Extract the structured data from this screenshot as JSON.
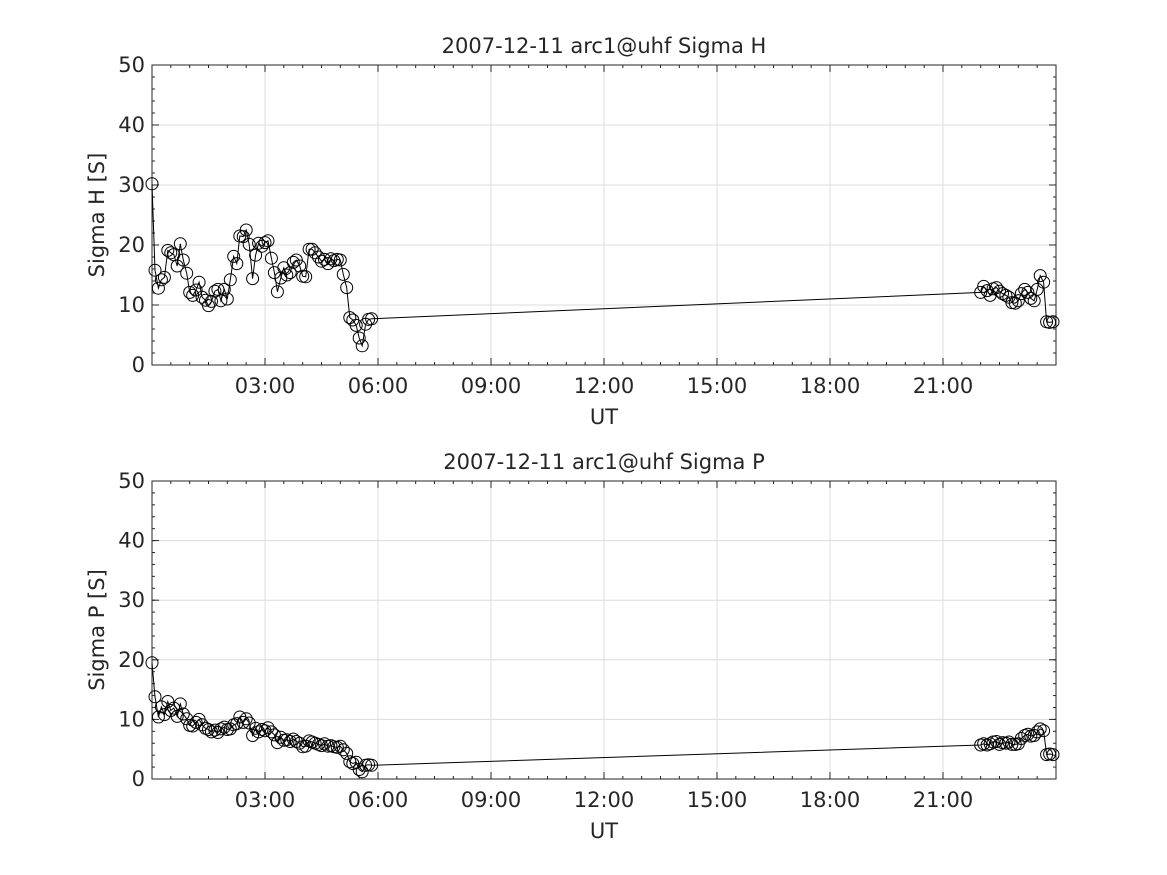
{
  "chart_data": [
    {
      "type": "line",
      "title": "2007-12-11  arc1@uhf Sigma H",
      "xlabel": "UT",
      "ylabel": "Sigma H [S]",
      "xlim": [
        0,
        24
      ],
      "ylim": [
        0,
        50
      ],
      "xticks": [
        3,
        6,
        9,
        12,
        15,
        18,
        21
      ],
      "xtick_labels": [
        "03:00",
        "06:00",
        "09:00",
        "12:00",
        "15:00",
        "18:00",
        "21:00"
      ],
      "yticks": [
        0,
        10,
        20,
        30,
        40,
        50
      ],
      "ytick_labels": [
        "0",
        "10",
        "20",
        "30",
        "40",
        "50"
      ],
      "grid": true,
      "marker": "open-circle",
      "color": "#000000",
      "series": [
        {
          "x": [
            0.0,
            0.08,
            0.17,
            0.25,
            0.33,
            0.42,
            0.5,
            0.58,
            0.67,
            0.75,
            0.83,
            0.92,
            1.0,
            1.08,
            1.17,
            1.25,
            1.33,
            1.42,
            1.5,
            1.58,
            1.67,
            1.75,
            1.83,
            1.92,
            2.0,
            2.08,
            2.17,
            2.25,
            2.33,
            2.42,
            2.5,
            2.58,
            2.67,
            2.75,
            2.83,
            2.92,
            3.0,
            3.08,
            3.17,
            3.25,
            3.33,
            3.42,
            3.5,
            3.58,
            3.67,
            3.75,
            3.83,
            3.92,
            4.0,
            4.08,
            4.17,
            4.25,
            4.33,
            4.42,
            4.5,
            4.58,
            4.67,
            4.75,
            4.83,
            4.92,
            5.0,
            5.08,
            5.17,
            5.25,
            5.33,
            5.42,
            5.5,
            5.58,
            5.67,
            5.75,
            5.83,
            22.0,
            22.08,
            22.17,
            22.25,
            22.33,
            22.42,
            22.5,
            22.58,
            22.67,
            22.75,
            22.83,
            22.92,
            23.0,
            23.08,
            23.17,
            23.25,
            23.33,
            23.42,
            23.5,
            23.58,
            23.67,
            23.75,
            23.83,
            23.92
          ],
          "y": [
            30.2,
            15.8,
            12.8,
            14.2,
            14.6,
            19.1,
            18.7,
            18.4,
            16.5,
            20.2,
            17.5,
            15.3,
            12.1,
            11.6,
            12.5,
            13.8,
            11.3,
            10.8,
            9.9,
            10.6,
            12.3,
            12.6,
            10.7,
            12.6,
            11.0,
            14.2,
            18.1,
            16.9,
            21.5,
            21.4,
            22.5,
            20.1,
            14.4,
            18.3,
            20.3,
            19.8,
            20.4,
            20.7,
            17.8,
            15.4,
            12.2,
            14.5,
            16.2,
            15.0,
            15.4,
            17.1,
            17.5,
            16.5,
            14.8,
            14.7,
            19.3,
            19.3,
            18.7,
            18.0,
            17.3,
            17.6,
            16.9,
            17.7,
            17.4,
            17.6,
            17.5,
            15.1,
            12.9,
            7.9,
            7.5,
            6.6,
            4.5,
            3.2,
            6.8,
            7.6,
            7.7,
            12.1,
            13.1,
            12.4,
            11.6,
            12.7,
            12.9,
            12.3,
            11.9,
            11.6,
            11.3,
            10.4,
            10.3,
            10.7,
            11.9,
            12.6,
            12.1,
            11.1,
            10.7,
            12.6,
            14.9,
            13.8,
            7.2,
            7.1,
            7.2
          ]
        }
      ]
    },
    {
      "type": "line",
      "title": "2007-12-11  arc1@uhf Sigma P",
      "xlabel": "UT",
      "ylabel": "Sigma P [S]",
      "xlim": [
        0,
        24
      ],
      "ylim": [
        0,
        50
      ],
      "xticks": [
        3,
        6,
        9,
        12,
        15,
        18,
        21
      ],
      "xtick_labels": [
        "03:00",
        "06:00",
        "09:00",
        "12:00",
        "15:00",
        "18:00",
        "21:00"
      ],
      "yticks": [
        0,
        10,
        20,
        30,
        40,
        50
      ],
      "ytick_labels": [
        "0",
        "10",
        "20",
        "30",
        "40",
        "50"
      ],
      "grid": true,
      "marker": "open-circle",
      "color": "#000000",
      "series": [
        {
          "x": [
            0.0,
            0.08,
            0.17,
            0.25,
            0.33,
            0.42,
            0.5,
            0.58,
            0.67,
            0.75,
            0.83,
            0.92,
            1.0,
            1.08,
            1.17,
            1.25,
            1.33,
            1.42,
            1.5,
            1.58,
            1.67,
            1.75,
            1.83,
            1.92,
            2.0,
            2.08,
            2.17,
            2.25,
            2.33,
            2.42,
            2.5,
            2.58,
            2.67,
            2.75,
            2.83,
            2.92,
            3.0,
            3.08,
            3.17,
            3.25,
            3.33,
            3.42,
            3.5,
            3.58,
            3.67,
            3.75,
            3.83,
            3.92,
            4.0,
            4.08,
            4.17,
            4.25,
            4.33,
            4.42,
            4.5,
            4.58,
            4.67,
            4.75,
            4.83,
            4.92,
            5.0,
            5.08,
            5.17,
            5.25,
            5.33,
            5.42,
            5.5,
            5.58,
            5.67,
            5.75,
            5.83,
            22.0,
            22.08,
            22.17,
            22.25,
            22.33,
            22.42,
            22.5,
            22.58,
            22.67,
            22.75,
            22.83,
            22.92,
            23.0,
            23.08,
            23.17,
            23.25,
            23.33,
            23.42,
            23.5,
            23.58,
            23.67,
            23.75,
            23.83,
            23.92
          ],
          "y": [
            19.5,
            13.8,
            10.4,
            12.1,
            10.8,
            13.0,
            11.5,
            11.9,
            10.5,
            12.6,
            10.9,
            10.1,
            9.0,
            8.9,
            9.5,
            10.0,
            9.1,
            8.5,
            8.3,
            7.9,
            8.2,
            7.8,
            8.4,
            8.7,
            8.3,
            8.4,
            9.1,
            9.3,
            10.4,
            9.5,
            10.1,
            9.4,
            7.3,
            8.5,
            7.9,
            8.3,
            8.1,
            8.6,
            7.9,
            7.4,
            6.1,
            7.0,
            6.5,
            6.6,
            6.3,
            6.7,
            6.3,
            6.0,
            5.4,
            5.5,
            6.4,
            6.2,
            6.0,
            5.8,
            5.6,
            5.9,
            5.5,
            5.6,
            5.4,
            5.3,
            5.5,
            4.9,
            4.3,
            2.9,
            2.6,
            2.8,
            1.6,
            1.2,
            2.3,
            2.4,
            2.3,
            5.7,
            5.9,
            5.7,
            5.9,
            6.2,
            6.3,
            5.8,
            6.1,
            6.0,
            6.2,
            5.8,
            5.8,
            5.9,
            6.8,
            7.3,
            7.5,
            7.2,
            7.3,
            7.9,
            8.4,
            8.1,
            4.1,
            4.2,
            4.1
          ]
        }
      ]
    }
  ]
}
